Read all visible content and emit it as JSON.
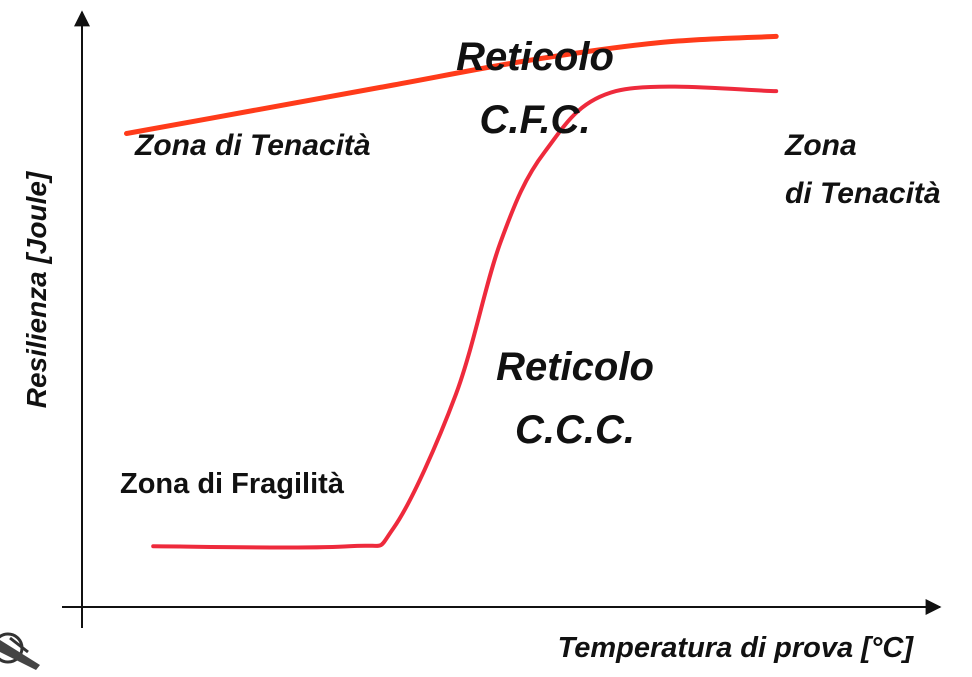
{
  "chart_data": {
    "type": "line",
    "title": "",
    "xlabel": "Temperatura di prova [°C]",
    "ylabel": "Resilienza [Joule]",
    "grid": false,
    "series": [
      {
        "name": "Reticolo C.F.C.",
        "color": "#ff3b1a",
        "points": [
          [
            0.05,
            0.78
          ],
          [
            0.2,
            0.82
          ],
          [
            0.35,
            0.86
          ],
          [
            0.5,
            0.9
          ],
          [
            0.65,
            0.93
          ],
          [
            0.78,
            0.94
          ]
        ]
      },
      {
        "name": "Reticolo C.C.C.",
        "color": "#ee2a3c",
        "points": [
          [
            0.08,
            0.1
          ],
          [
            0.3,
            0.1
          ],
          [
            0.35,
            0.13
          ],
          [
            0.42,
            0.35
          ],
          [
            0.47,
            0.6
          ],
          [
            0.52,
            0.75
          ],
          [
            0.6,
            0.85
          ],
          [
            0.78,
            0.85
          ]
        ]
      }
    ],
    "annotations": {
      "cfc_line1": "Reticolo",
      "cfc_line2": "C.F.C.",
      "ccc_line1": "Reticolo",
      "ccc_line2": "C.C.C.",
      "tenacita_left": "Zona di Tenacità",
      "tenacita_right_line1": "Zona",
      "tenacita_right_line2": "di Tenacità",
      "fragilita": "Zona di Fragilità"
    }
  }
}
